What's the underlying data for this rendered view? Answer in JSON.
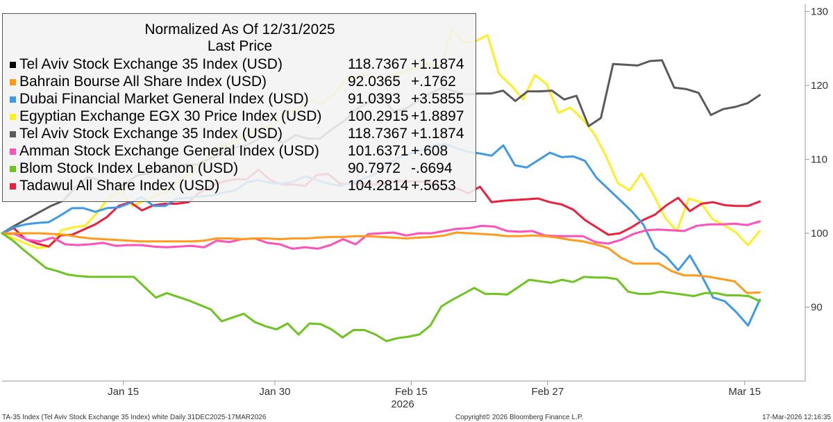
{
  "legend": {
    "title_line1": "Normalized As Of 12/31/2025",
    "title_line2": "Last Price",
    "items": [
      {
        "name": "Tel Aviv Stock Exchange 35 Index (USD)",
        "value": "118.7367",
        "change": "+1.1874",
        "color": "#000000"
      },
      {
        "name": "Bahrain Bourse All Share Index (USD)",
        "value": "92.0365",
        "change": "+.1762",
        "color": "#ff9a1a"
      },
      {
        "name": "Dubai Financial Market General Index (USD)",
        "value": "91.0393",
        "change": "+3.5855",
        "color": "#3d9ae8"
      },
      {
        "name": "Egyptian Exchange EGX 30 Price Index (USD)",
        "value": "100.2915",
        "change": "+1.8897",
        "color": "#ffee22"
      },
      {
        "name": "Tel Aviv Stock Exchange 35 Index (USD)",
        "value": "118.7367",
        "change": "+1.1874",
        "color": "#5a5a5a"
      },
      {
        "name": "Amman Stock Exchange General Index (USD)",
        "value": "101.6371",
        "change": "+.608",
        "color": "#ff4fb8"
      },
      {
        "name": "Blom Stock Index Lebanon (USD)",
        "value": "90.7972",
        "change": "-.6694",
        "color": "#6cc51c"
      },
      {
        "name": "Tadawul All Share Index (USD)",
        "value": "104.2814",
        "change": "+.5653",
        "color": "#ee1e3c"
      }
    ]
  },
  "footer": {
    "left": "TA-35 Index (Tel Aviv Stock Exchange 35 Index) white Daily 31DEC2025-17MAR2026",
    "center": "Copyright© 2026 Bloomberg Finance L.P.",
    "right": "17-Mar-2026 12:16:35"
  },
  "chart_data": {
    "type": "line",
    "title": "Normalized As Of 12/31/2025",
    "subtitle": "Last Price",
    "xlabel": "2026",
    "ylabel": "",
    "ylim": [
      80,
      131
    ],
    "xlim": [
      0,
      53
    ],
    "yticks": [
      90,
      100,
      110,
      120,
      130
    ],
    "xticks": [
      {
        "x": 8,
        "label": "Jan 15"
      },
      {
        "x": 18,
        "label": "Jan 30"
      },
      {
        "x": 27,
        "label": "Feb 15"
      },
      {
        "x": 36,
        "label": "Feb 27"
      },
      {
        "x": 49,
        "label": "Mar 15"
      }
    ],
    "series": [
      {
        "name": "Egyptian Exchange EGX 30 Price Index (USD)",
        "color": "#ffee22",
        "values": [
          100,
          99.3,
          98.6,
          98,
          98.2,
          100.4,
          100.8,
          101,
          102.7,
          104.8,
          105.8,
          103.7,
          104.4,
          105.1,
          105.7,
          107.2,
          108.2,
          109.8,
          111.2,
          112,
          112.7,
          113.6,
          114.2,
          114.7,
          116.4,
          116.8,
          118,
          117.5,
          118.8,
          120.9,
          121.1,
          121.4,
          120.7,
          121.4,
          121.9,
          122.4,
          123,
          122.5,
          127.6,
          125.8,
          126,
          126.8,
          121.5,
          120,
          118.1,
          121.4,
          120.2,
          116.3,
          117,
          115.5,
          113.5,
          110.5,
          106.8,
          105.8,
          108.1,
          105.3,
          102.1,
          100.3,
          104.7,
          104.2,
          101.9,
          101.1,
          100.1,
          98.4,
          100.3
        ]
      },
      {
        "name": "Tel Aviv Stock Exchange 35 Index (USD)",
        "color": "#5a5a5a",
        "values": [
          100,
          101,
          101.9,
          102.8,
          103.7,
          104.4,
          106.2,
          107.6,
          107.2,
          106.6,
          106.5,
          107.8,
          108.1,
          108.8,
          108.8,
          109.3,
          109.3,
          110.1,
          110.9,
          111.6,
          111.9,
          112.8,
          113.1,
          112.2,
          113.3,
          112.8,
          112.8,
          114.1,
          115.2,
          116.8,
          117.7,
          118.7,
          116.5,
          116.8,
          117.9,
          118.9,
          119.7,
          119.2,
          118.8,
          118.9,
          118.9,
          119.3,
          117.9,
          119.2,
          119.2,
          119.3,
          118.1,
          118.6,
          114.5,
          115.6,
          122.9,
          122.8,
          122.7,
          123.3,
          123.4,
          119.7,
          119.5,
          119,
          116,
          116.8,
          117.1,
          117.6,
          118.7
        ]
      },
      {
        "name": "Tadawul All Share Index (USD)",
        "color": "#ee1e3c",
        "values": [
          100,
          100.7,
          99.2,
          98.6,
          98.2,
          99.7,
          99.8,
          100.5,
          101.2,
          102.2,
          103.7,
          104.2,
          103.1,
          103.8,
          104,
          104,
          104.2,
          105.6,
          106.5,
          107,
          107.3,
          107.3,
          108.6,
          107.2,
          106.6,
          106.6,
          106.4,
          107.9,
          108,
          106.7,
          106.7,
          106.8,
          106.6,
          106.8,
          107.1,
          107,
          107,
          106.7,
          106,
          106.1,
          105.4,
          106.3,
          104.2,
          104.4,
          104.5,
          104.6,
          104.7,
          104.2,
          103.9,
          103.2,
          101.8,
          100.8,
          99.8,
          100,
          100.8,
          101.8,
          102.5,
          103.8,
          104.8,
          103,
          104,
          104.2,
          103.8,
          103.7,
          103.7,
          104.3
        ]
      },
      {
        "name": "Dubai Financial Market General Index (USD)",
        "color": "#3d9ae8",
        "values": [
          100,
          100.8,
          101.2,
          101.4,
          101.5,
          102.4,
          103.4,
          103.4,
          102.9,
          103.4,
          103.5,
          104.1,
          104.9,
          103.7,
          103.7,
          104.7,
          104.8,
          105,
          105.1,
          105.5,
          105.8,
          106.9,
          107.2,
          106.8,
          106.7,
          107,
          107.7,
          107.2,
          106.7,
          106.4,
          106.9,
          107.4,
          108,
          109.3,
          110.2,
          110.8,
          111.2,
          111.8,
          112.1,
          111.5,
          111,
          110.8,
          110.5,
          111.9,
          109.2,
          108.9,
          109.9,
          110.9,
          110.3,
          110.4,
          109.8,
          107.5,
          106,
          104.5,
          103,
          101.2,
          98,
          96.8,
          95,
          97,
          94.3,
          91.3,
          90.8,
          89.3,
          87.5,
          91
        ]
      },
      {
        "name": "Amman Stock Exchange General Index (USD)",
        "color": "#ff4fb8",
        "values": [
          100,
          99.9,
          99.1,
          98.9,
          99.4,
          98.5,
          98.4,
          98.5,
          98.7,
          98.3,
          98.4,
          98.4,
          98.2,
          98.1,
          98.2,
          98.3,
          98.1,
          99,
          98.8,
          99.2,
          99.3,
          98.7,
          98.5,
          97.9,
          98.1,
          97.9,
          98.4,
          99.2,
          98.5,
          99.9,
          100,
          100.1,
          99.7,
          100,
          100,
          100.3,
          100.6,
          100.7,
          101,
          100.9,
          100.3,
          100.2,
          100.3,
          99.7,
          99.6,
          99.6,
          99.6,
          98.8,
          98.6,
          99.1,
          99.9,
          100.4,
          100.5,
          100.4,
          100.3,
          101,
          101.2,
          101.2,
          101.3,
          101.1,
          101.6
        ]
      },
      {
        "name": "Bahrain Bourse All Share Index (USD)",
        "color": "#ff9a1a",
        "values": [
          100,
          100,
          100,
          100,
          99.9,
          99.8,
          99.5,
          99.3,
          99.2,
          99.1,
          99,
          98.9,
          98.9,
          98.9,
          98.9,
          98.9,
          99,
          99.3,
          99.3,
          99.2,
          99.3,
          99.3,
          99.2,
          99.3,
          99.3,
          99.4,
          99.5,
          99.5,
          99.6,
          99.6,
          99.5,
          99.4,
          99.3,
          99.4,
          99.5,
          99.7,
          100.1,
          100,
          99.9,
          99.8,
          99.6,
          99.6,
          99.7,
          99.6,
          99.4,
          99.1,
          98.9,
          98.5,
          98,
          96.7,
          95.9,
          95.9,
          95.9,
          94.9,
          94.3,
          94.3,
          94.1,
          93.8,
          93.5,
          91.9,
          92
        ]
      },
      {
        "name": "Blom Stock Index Lebanon (USD)",
        "color": "#6cc51c",
        "values": [
          100,
          99,
          97.7,
          96.5,
          95.3,
          94.9,
          94.4,
          94.2,
          94.1,
          94.1,
          94.1,
          94.1,
          94.1,
          92.7,
          91.3,
          91.9,
          91.4,
          90.9,
          90.3,
          89.7,
          88.1,
          88.6,
          89.1,
          88,
          87.4,
          87,
          87.8,
          86.3,
          87.8,
          87.7,
          87,
          85.9,
          86.9,
          86.9,
          86.3,
          85.4,
          85.8,
          86,
          86.3,
          87.5,
          90.1,
          91,
          91.8,
          92.6,
          91.8,
          91.8,
          91.7,
          92.7,
          93.7,
          93.5,
          93.3,
          93.7,
          93.4,
          94.1,
          94,
          94,
          93.8,
          92.1,
          91.8,
          91.8,
          92.1,
          91.9,
          91.7,
          91.5,
          91.9,
          91.9,
          91.6,
          91.6,
          91.5,
          90.8
        ]
      },
      {
        "name": "Tel Aviv Stock Exchange 35 Index (USD)",
        "color": "#000000",
        "values": [
          100,
          101,
          101.9,
          102.8,
          103.7,
          104.4,
          106.2,
          107.6,
          107.2,
          106.6,
          106.5,
          107.8,
          108.1,
          108.8,
          108.8,
          109.3,
          109.3,
          110.1,
          110.9,
          111.6,
          111.9,
          112.8,
          113.1,
          112.2,
          113.3,
          112.8,
          112.8,
          114.1,
          115.2,
          116.8,
          117.7,
          118.7,
          116.5,
          116.8,
          117.9,
          118.9,
          119.7,
          119.2,
          118.8,
          118.9,
          118.9,
          119.3,
          117.9,
          119.2,
          119.2,
          119.3,
          118.1,
          118.6,
          114.5,
          115.6,
          122.9,
          122.8,
          122.7,
          123.3,
          123.4,
          119.7,
          119.5,
          119,
          116,
          116.8,
          117.1,
          117.6,
          118.7
        ],
        "hidden_under": "#5a5a5a"
      }
    ]
  }
}
